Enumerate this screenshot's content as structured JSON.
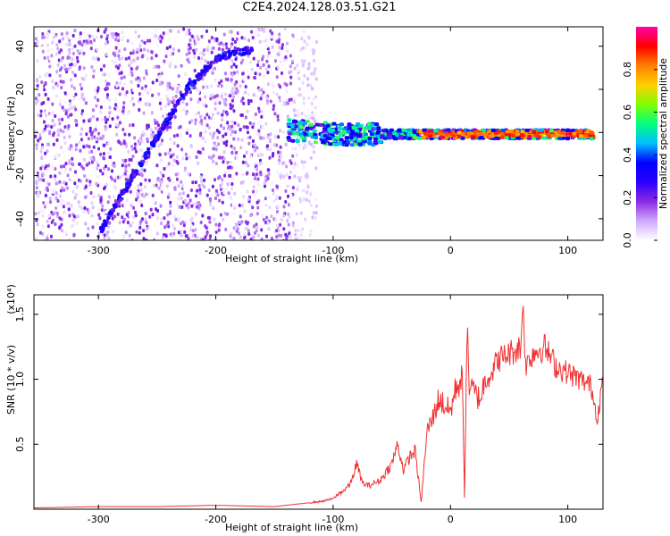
{
  "title": "C2E4.2024.128.03.51.G21",
  "chart_data": [
    {
      "type": "heatmap",
      "title": "C2E4.2024.128.03.51.G21",
      "xlabel": "Height of straight line (km)",
      "ylabel": "Frequency (Hz)",
      "xlim": [
        -355,
        130
      ],
      "ylim": [
        -50,
        49
      ],
      "xticks": [
        -300,
        -200,
        -100,
        0,
        100
      ],
      "yticks": [
        -40,
        -20,
        0,
        20,
        40
      ],
      "colorbar": {
        "label": "Normalized spectral amplitude",
        "range": [
          0.0,
          1.0
        ],
        "ticks": [
          0.0,
          0.2,
          0.4,
          0.6,
          0.8
        ],
        "tick_labels": [
          "0.0",
          "0.2",
          "0.4",
          "0.6",
          "0.8"
        ],
        "colormap": [
          "#ffffff",
          "#cfa8ff",
          "#8a2be2",
          "#2a00ff",
          "#0000ff",
          "#00bfff",
          "#00ff7f",
          "#7fff00",
          "#ffd000",
          "#ff7f00",
          "#ff0000",
          "#ff00aa"
        ]
      },
      "features": [
        {
          "name": "diagonal streak",
          "x": [
            -300,
            -275,
            -250,
            -225,
            -200,
            -185,
            -170
          ],
          "y": [
            -45,
            -22,
            0,
            22,
            35,
            38,
            39
          ]
        },
        {
          "name": "central line",
          "x": [
            -140,
            -100,
            -60,
            -20,
            0,
            40,
            80,
            120
          ],
          "y": [
            2,
            0,
            0,
            0,
            0,
            0,
            0,
            0
          ]
        },
        {
          "name": "noise region",
          "x": [
            -355,
            -135
          ],
          "y": [
            -50,
            49
          ]
        }
      ]
    },
    {
      "type": "line",
      "xlabel": "Height of straight line (km)",
      "ylabel": "SNR (10 * v/v)",
      "multiplier": "(x10⁴)",
      "xlim": [
        -355,
        130
      ],
      "ylim": [
        0,
        1.65
      ],
      "xticks": [
        -300,
        -200,
        -100,
        0,
        100
      ],
      "yticks": [
        0.5,
        1.0,
        1.5
      ],
      "ytick_labels": [
        "0.5",
        "1.0",
        "1.5"
      ],
      "color": "#f03030",
      "series": [
        {
          "x": [
            -355,
            -300,
            -250,
            -200,
            -150,
            -130,
            -110,
            -100,
            -95,
            -90,
            -85,
            -80,
            -75,
            -70,
            -60,
            -50,
            -45,
            -40,
            -35,
            -30,
            -25,
            -20,
            -15,
            -10,
            -5,
            0,
            5,
            10,
            12,
            14,
            16,
            20,
            25,
            30,
            35,
            40,
            50,
            60,
            62,
            64,
            70,
            80,
            90,
            100,
            110,
            120,
            125,
            130
          ],
          "y": [
            0.01,
            0.02,
            0.02,
            0.03,
            0.02,
            0.04,
            0.06,
            0.08,
            0.12,
            0.15,
            0.2,
            0.35,
            0.2,
            0.18,
            0.22,
            0.35,
            0.5,
            0.3,
            0.4,
            0.45,
            0.05,
            0.6,
            0.7,
            0.85,
            0.8,
            0.75,
            0.95,
            1.0,
            0.1,
            1.4,
            0.95,
            0.9,
            0.85,
            1.0,
            1.05,
            1.15,
            1.2,
            1.25,
            1.62,
            1.1,
            1.2,
            1.25,
            1.1,
            1.05,
            1.0,
            0.95,
            0.7,
            1.0
          ]
        }
      ]
    }
  ]
}
